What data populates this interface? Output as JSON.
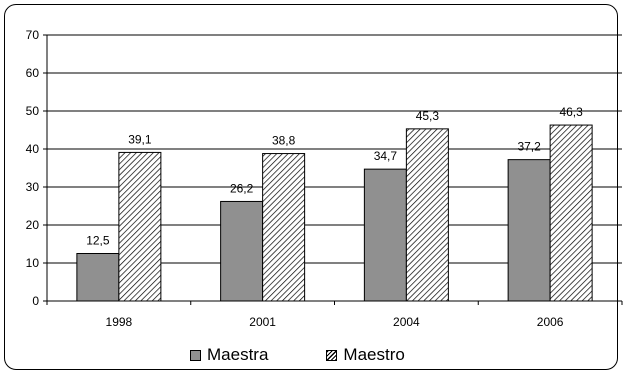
{
  "chart_data": {
    "type": "bar",
    "categories": [
      "1998",
      "2001",
      "2004",
      "2006"
    ],
    "series": [
      {
        "name": "Maestra",
        "values": [
          12.5,
          26.2,
          34.7,
          37.2
        ],
        "labels": [
          "12,5",
          "26,2",
          "34,7",
          "37,2"
        ],
        "color": "#909090",
        "pattern": "solid"
      },
      {
        "name": "Maestro",
        "values": [
          39.1,
          38.8,
          45.3,
          46.3
        ],
        "labels": [
          "39,1",
          "38,8",
          "45,3",
          "46,3"
        ],
        "color": "#ffffff",
        "pattern": "diagonal-hatch"
      }
    ],
    "ylim": [
      0,
      70
    ],
    "yticks": [
      "0",
      "10",
      "20",
      "30",
      "40",
      "50",
      "60",
      "70"
    ],
    "grid": true,
    "legend_position": "bottom",
    "title": "",
    "xlabel": "",
    "ylabel": ""
  }
}
